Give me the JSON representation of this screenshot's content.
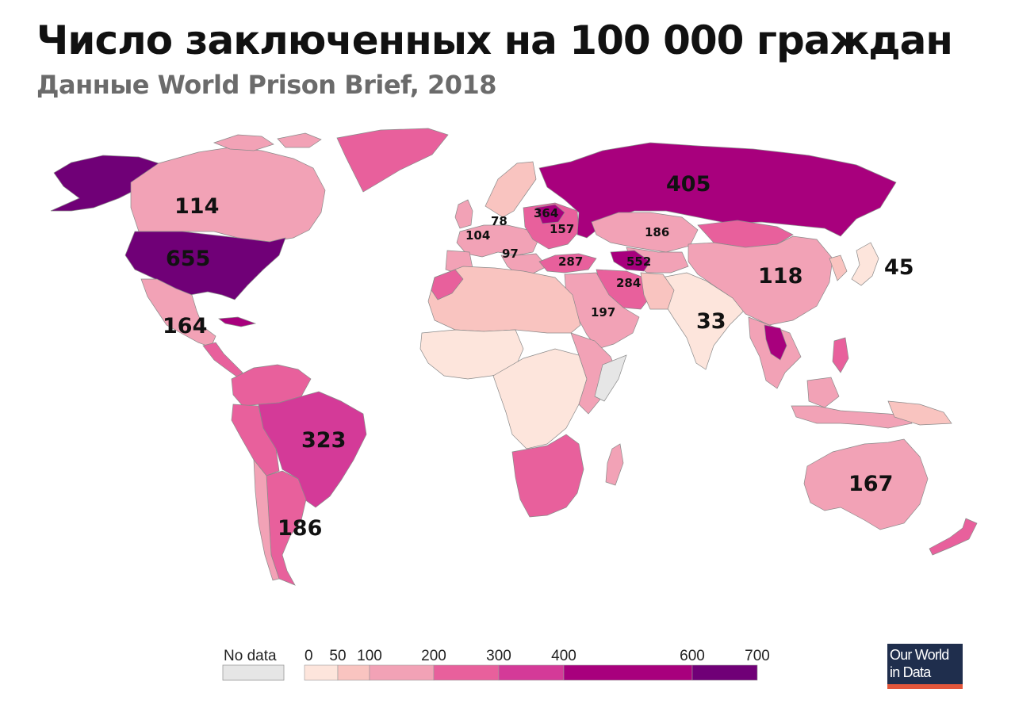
{
  "title": "Число заключенных на 100 000 граждан",
  "subtitle": "Данные World Prison Brief, 2018",
  "map": {
    "colors": {
      "ocean": "#ffffff",
      "no_data": "#e6e6e6",
      "0_50": "#fde5dc",
      "50_100": "#f9c4c0",
      "100_200": "#f2a2b6",
      "200_300": "#e8609c",
      "300_400": "#d43a98",
      "400_600": "#a8007d",
      "600_700": "#700077",
      "border": "#8a8a8a"
    },
    "labels": [
      {
        "id": "canada",
        "value": "114"
      },
      {
        "id": "usa",
        "value": "655"
      },
      {
        "id": "mexico",
        "value": "164"
      },
      {
        "id": "brazil",
        "value": "323"
      },
      {
        "id": "argentina",
        "value": "186"
      },
      {
        "id": "russia",
        "value": "405"
      },
      {
        "id": "kazakhstan",
        "value": "186"
      },
      {
        "id": "china",
        "value": "118"
      },
      {
        "id": "japan",
        "value": "45"
      },
      {
        "id": "india",
        "value": "33"
      },
      {
        "id": "australia",
        "value": "167"
      },
      {
        "id": "uk",
        "value": "78"
      },
      {
        "id": "france",
        "value": "104"
      },
      {
        "id": "italy",
        "value": "97"
      },
      {
        "id": "belarus",
        "value": "364"
      },
      {
        "id": "ukraine",
        "value": "157"
      },
      {
        "id": "turkey",
        "value": "287"
      },
      {
        "id": "turkmenistan",
        "value": "552"
      },
      {
        "id": "iran",
        "value": "284"
      },
      {
        "id": "saudi_arabia",
        "value": "197"
      }
    ]
  },
  "legend": {
    "no_data_label": "No data",
    "bins": [
      {
        "from": 0,
        "to": 50,
        "color": "#fde5dc"
      },
      {
        "from": 50,
        "to": 100,
        "color": "#f9c4c0"
      },
      {
        "from": 100,
        "to": 200,
        "color": "#f2a2b6"
      },
      {
        "from": 200,
        "to": 300,
        "color": "#e8609c"
      },
      {
        "from": 300,
        "to": 400,
        "color": "#d43a98"
      },
      {
        "from": 400,
        "to": 600,
        "color": "#a8007d"
      },
      {
        "from": 600,
        "to": 700,
        "color": "#700077"
      }
    ],
    "tick_labels": [
      "0",
      "50",
      "100",
      "200",
      "300",
      "400",
      "600",
      "700"
    ]
  },
  "logo": {
    "line1": "Our World",
    "line2": "in Data",
    "bg_color": "#1f2e4d",
    "accent_color": "#e2563b"
  }
}
